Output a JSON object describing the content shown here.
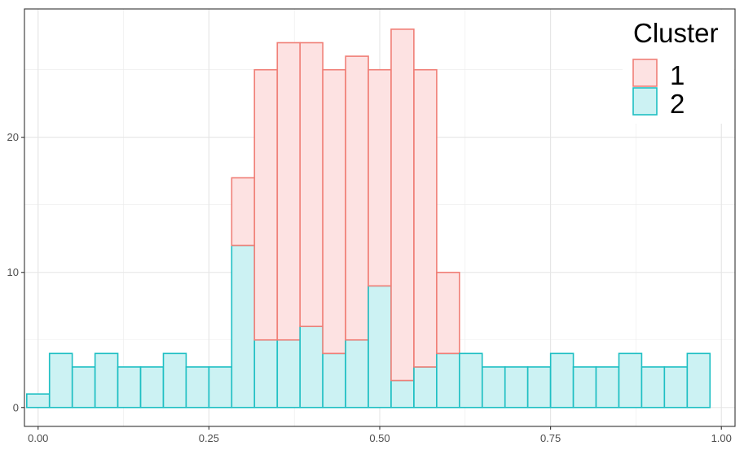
{
  "chart_data": {
    "type": "bar",
    "subtype": "histogram-stacked",
    "title": "",
    "xlabel": "",
    "ylabel": "",
    "xlim": [
      -0.02,
      1.02
    ],
    "ylim": [
      -1.4,
      29.5
    ],
    "bin_width": 0.0333,
    "bin_centers": [
      0.0,
      0.0333,
      0.0667,
      0.1,
      0.1333,
      0.1667,
      0.2,
      0.2333,
      0.2667,
      0.3,
      0.3333,
      0.3667,
      0.4,
      0.4333,
      0.4667,
      0.5,
      0.5333,
      0.5667,
      0.6,
      0.6333,
      0.6667,
      0.7,
      0.7333,
      0.7667,
      0.8,
      0.8333,
      0.8667,
      0.9,
      0.9333,
      0.9667
    ],
    "x_ticks": [
      0.0,
      0.25,
      0.5,
      0.75,
      1.0
    ],
    "x_tick_labels": [
      "0.00",
      "0.25",
      "0.50",
      "0.75",
      "1.00"
    ],
    "y_ticks": [
      0,
      10,
      20
    ],
    "y_tick_labels": [
      "0",
      "10",
      "20"
    ],
    "grid": true,
    "legend_position": "top-right",
    "legend_title": "Cluster",
    "series": [
      {
        "name": "1",
        "fill": "#fde2e2",
        "stroke": "#f07f77",
        "values": [
          0,
          0,
          0,
          0,
          0,
          0,
          0,
          0,
          0,
          5,
          20,
          22,
          21,
          21,
          21,
          16,
          26,
          22,
          6,
          0,
          0,
          0,
          0,
          0,
          0,
          0,
          0,
          0,
          0,
          0
        ]
      },
      {
        "name": "2",
        "fill": "#ccf2f3",
        "stroke": "#1ebfc3",
        "values": [
          1,
          4,
          3,
          4,
          3,
          3,
          4,
          3,
          3,
          12,
          5,
          5,
          6,
          4,
          5,
          9,
          2,
          3,
          4,
          4,
          3,
          3,
          3,
          4,
          3,
          3,
          4,
          3,
          3,
          4
        ]
      }
    ]
  }
}
